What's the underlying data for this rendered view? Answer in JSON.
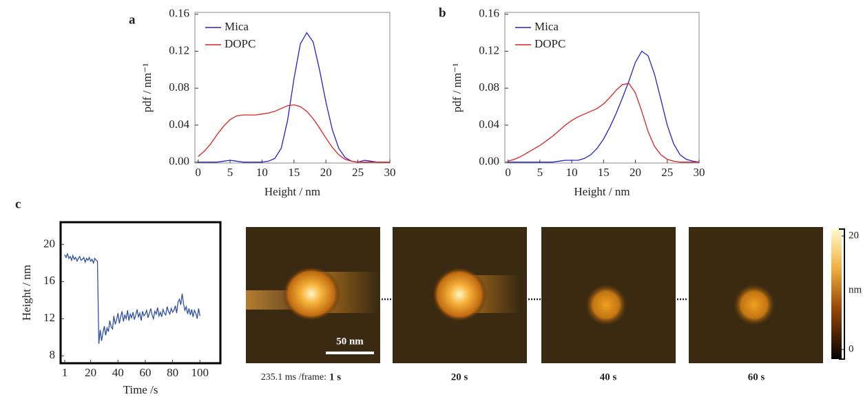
{
  "chart_data": [
    {
      "type": "line",
      "label": "a",
      "x_label": "Height / nm",
      "y_label": "pdf / nm⁻¹",
      "x": [
        0,
        1,
        2,
        3,
        4,
        5,
        6,
        7,
        8,
        9,
        10,
        11,
        12,
        13,
        14,
        15,
        16,
        17,
        18,
        19,
        20,
        21,
        22,
        23,
        24,
        25,
        26,
        27,
        28,
        29,
        30
      ],
      "series": [
        {
          "name": "Mica",
          "color": "#2020d0",
          "values": [
            0,
            0,
            0,
            0,
            0.001,
            0.002,
            0.001,
            0,
            0,
            0,
            0,
            0.001,
            0.004,
            0.015,
            0.045,
            0.09,
            0.128,
            0.14,
            0.13,
            0.1,
            0.065,
            0.035,
            0.015,
            0.005,
            0.001,
            0,
            0.002,
            0.001,
            0,
            0,
            0
          ]
        },
        {
          "name": "DOPC",
          "color": "#e02020",
          "values": [
            0.006,
            0.012,
            0.02,
            0.03,
            0.039,
            0.046,
            0.05,
            0.051,
            0.051,
            0.051,
            0.052,
            0.053,
            0.055,
            0.058,
            0.061,
            0.062,
            0.06,
            0.055,
            0.047,
            0.037,
            0.026,
            0.016,
            0.008,
            0.003,
            0.001,
            0,
            0,
            0,
            0,
            0,
            0
          ]
        }
      ],
      "xlim": [
        -0.5,
        30
      ],
      "ylim": [
        -0.001,
        0.162
      ],
      "xticks": [
        0,
        5,
        10,
        15,
        20,
        25,
        30
      ],
      "yticks": [
        {
          "value": 0,
          "label": "0.00"
        },
        0.04,
        0.08,
        0.12,
        0.16
      ],
      "legend": "upper left"
    },
    {
      "type": "line",
      "label": "b",
      "x_label": "Height / nm",
      "y_label": "pdf / nm⁻¹",
      "x": [
        0,
        1,
        2,
        3,
        4,
        5,
        6,
        7,
        8,
        9,
        10,
        11,
        12,
        13,
        14,
        15,
        16,
        17,
        18,
        19,
        20,
        21,
        22,
        23,
        24,
        25,
        26,
        27,
        28,
        29,
        30
      ],
      "series": [
        {
          "name": "Mica",
          "color": "#2020d0",
          "values": [
            0,
            0,
            0,
            0,
            0,
            0,
            0,
            0,
            0.001,
            0.002,
            0.002,
            0.002,
            0.004,
            0.008,
            0.015,
            0.025,
            0.038,
            0.053,
            0.07,
            0.088,
            0.108,
            0.12,
            0.115,
            0.095,
            0.068,
            0.04,
            0.02,
            0.008,
            0.003,
            0.001,
            0
          ]
        },
        {
          "name": "DOPC",
          "color": "#e02020",
          "values": [
            0.001,
            0.003,
            0.006,
            0.01,
            0.014,
            0.018,
            0.023,
            0.028,
            0.034,
            0.04,
            0.045,
            0.049,
            0.052,
            0.055,
            0.058,
            0.063,
            0.07,
            0.078,
            0.084,
            0.085,
            0.075,
            0.055,
            0.033,
            0.017,
            0.008,
            0.003,
            0.001,
            0,
            0,
            0,
            0
          ]
        }
      ],
      "xlim": [
        -0.5,
        30
      ],
      "ylim": [
        -0.001,
        0.162
      ],
      "xticks": [
        0,
        5,
        10,
        15,
        20,
        25,
        30
      ],
      "yticks": [
        {
          "value": 0,
          "label": "0.00"
        },
        0.04,
        0.08,
        0.12,
        0.16
      ],
      "legend": "upper left"
    },
    {
      "type": "line",
      "label": "c",
      "x_label": "Time /s",
      "y_label": "Height / nm",
      "x": [
        1,
        2,
        3,
        4,
        5,
        6,
        7,
        8,
        9,
        10,
        11,
        12,
        13,
        14,
        15,
        16,
        17,
        18,
        19,
        20,
        21,
        22,
        23,
        24,
        25,
        26,
        27,
        28,
        29,
        30,
        31,
        32,
        33,
        34,
        35,
        36,
        37,
        38,
        39,
        40,
        41,
        42,
        43,
        44,
        45,
        46,
        47,
        48,
        49,
        50,
        51,
        52,
        53,
        54,
        55,
        56,
        57,
        58,
        59,
        60,
        61,
        62,
        63,
        64,
        65,
        66,
        67,
        68,
        69,
        70,
        71,
        72,
        73,
        74,
        75,
        76,
        77,
        78,
        79,
        80,
        81,
        82,
        83,
        84,
        85,
        86,
        87,
        88,
        89,
        90,
        91,
        92,
        93,
        94,
        95,
        96,
        97,
        98,
        99,
        100
      ],
      "series": [
        {
          "color": "#3050a0",
          "values": [
            18.9,
            18.6,
            19.0,
            18.5,
            18.7,
            18.3,
            18.8,
            18.4,
            18.6,
            18.2,
            18.5,
            18.7,
            18.3,
            18.4,
            18.6,
            18.1,
            18.5,
            18.3,
            18.6,
            18.2,
            18.4,
            18.0,
            18.5,
            18.3,
            18.2,
            9.3,
            10.8,
            9.6,
            10.5,
            11.2,
            10.2,
            11.0,
            10.6,
            11.8,
            11.1,
            10.9,
            12.3,
            11.4,
            11.9,
            12.6,
            11.5,
            12.2,
            12.8,
            11.7,
            12.4,
            12.0,
            12.9,
            11.8,
            12.5,
            12.1,
            12.7,
            11.9,
            12.4,
            13.0,
            12.2,
            12.6,
            11.8,
            12.8,
            12.3,
            12.5,
            12.9,
            12.1,
            12.6,
            13.1,
            12.4,
            12.0,
            12.8,
            12.5,
            13.2,
            12.3,
            12.7,
            12.2,
            13.0,
            12.6,
            12.4,
            13.3,
            12.8,
            12.5,
            13.1,
            12.7,
            12.9,
            13.4,
            12.6,
            13.8,
            14.1,
            13.5,
            14.7,
            13.6,
            12.9,
            13.3,
            12.5,
            13.1,
            12.4,
            13.0,
            12.2,
            12.9,
            12.6,
            12.0,
            13.1,
            12.3
          ]
        }
      ],
      "xlim": [
        -2,
        115
      ],
      "ylim": [
        7.2,
        22.4
      ],
      "xticks": [
        1,
        20,
        40,
        60,
        80,
        100
      ],
      "yticks": [
        8,
        12,
        16,
        20
      ]
    }
  ],
  "images": {
    "frame_rate": "235.1 ms /frame:",
    "frames": [
      "1 s",
      "20 s",
      "40 s",
      "60 s"
    ],
    "scale_bar": "50 nm",
    "colorbar": {
      "label": "nm",
      "lim": [
        0,
        20
      ],
      "ticks": [
        20,
        0
      ]
    }
  }
}
